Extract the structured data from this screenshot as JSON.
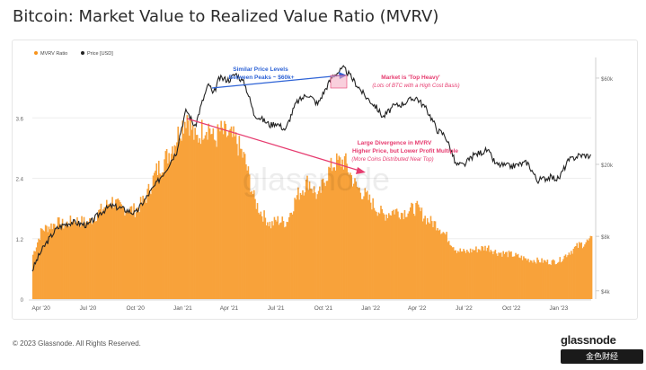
{
  "title": "Bitcoin: Market Value to Realized Value Ratio (MVRV)",
  "footer": "© 2023 Glassnode. All Rights Reserved.",
  "brand": "glassnode",
  "brand_sub": "金色财经",
  "watermark": "glassnode",
  "colors": {
    "mvrv": "#f7931a",
    "mvrv_fill": "#f8a23a",
    "price": "#222222",
    "blue_arrow": "#2e63d6",
    "pink_arrow": "#e63b6f",
    "pink_box": "#f4a7c0"
  },
  "chart_data": {
    "type": "bar",
    "legend": [
      {
        "name": "MVRV Ratio",
        "color": "#f7931a"
      },
      {
        "name": "Price [USD]",
        "color": "#222222"
      }
    ],
    "x_ticks": [
      "Apr '20",
      "Jul '20",
      "Oct '20",
      "Jan '21",
      "Apr '21",
      "Jul '21",
      "Oct '21",
      "Jan '22",
      "Apr '22",
      "Jul '22",
      "Oct '22",
      "Jan '23"
    ],
    "y_left_ticks": [
      "0",
      "1.2",
      "2.4",
      "3.6"
    ],
    "y_left_range": [
      0,
      4.8
    ],
    "y_right_ticks": [
      "$4k",
      "$8k",
      "$20k",
      "$60k"
    ],
    "y_right_tick_values": [
      4000,
      8000,
      20000,
      60000
    ],
    "y_right_log": true,
    "x_range": [
      "2020-03-15",
      "2023-03-05"
    ],
    "series": [
      {
        "name": "MVRV Ratio",
        "x": [
          "2020-03-15",
          "2020-04-01",
          "2020-05-01",
          "2020-05-15",
          "2020-06-01",
          "2020-07-01",
          "2020-07-25",
          "2020-08-15",
          "2020-09-01",
          "2020-10-01",
          "2020-10-20",
          "2020-11-10",
          "2020-12-01",
          "2020-12-20",
          "2021-01-08",
          "2021-01-25",
          "2021-02-10",
          "2021-02-21",
          "2021-03-01",
          "2021-03-13",
          "2021-04-01",
          "2021-04-14",
          "2021-05-01",
          "2021-05-19",
          "2021-06-01",
          "2021-06-20",
          "2021-07-01",
          "2021-07-20",
          "2021-08-10",
          "2021-09-01",
          "2021-09-20",
          "2021-10-05",
          "2021-10-20",
          "2021-11-10",
          "2021-12-01",
          "2021-12-20",
          "2022-01-10",
          "2022-01-25",
          "2022-02-15",
          "2022-03-01",
          "2022-03-30",
          "2022-04-20",
          "2022-05-10",
          "2022-05-25",
          "2022-06-15",
          "2022-07-01",
          "2022-07-20",
          "2022-08-15",
          "2022-09-01",
          "2022-10-01",
          "2022-11-01",
          "2022-11-20",
          "2022-12-15",
          "2023-01-01",
          "2023-01-20",
          "2023-02-10",
          "2023-03-05"
        ],
        "values": [
          0.9,
          1.4,
          1.55,
          1.5,
          1.6,
          1.55,
          1.8,
          2.0,
          1.85,
          1.8,
          2.05,
          2.6,
          2.9,
          3.3,
          3.75,
          3.2,
          3.5,
          3.5,
          3.2,
          3.4,
          3.3,
          3.2,
          2.8,
          2.0,
          1.75,
          1.5,
          1.6,
          1.55,
          2.1,
          2.4,
          2.05,
          2.5,
          2.75,
          2.8,
          2.3,
          2.1,
          1.85,
          1.7,
          1.8,
          1.75,
          1.85,
          1.6,
          1.5,
          1.3,
          1.0,
          0.95,
          1.0,
          1.05,
          0.95,
          0.9,
          0.8,
          0.78,
          0.75,
          0.78,
          0.95,
          1.1,
          1.2
        ]
      },
      {
        "name": "Price [USD]",
        "x": [
          "2020-03-15",
          "2020-04-01",
          "2020-05-01",
          "2020-05-15",
          "2020-06-01",
          "2020-07-01",
          "2020-07-25",
          "2020-08-15",
          "2020-09-01",
          "2020-10-01",
          "2020-10-20",
          "2020-11-10",
          "2020-12-01",
          "2020-12-20",
          "2021-01-08",
          "2021-01-25",
          "2021-02-10",
          "2021-02-21",
          "2021-03-01",
          "2021-03-13",
          "2021-04-01",
          "2021-04-14",
          "2021-05-01",
          "2021-05-19",
          "2021-06-01",
          "2021-06-20",
          "2021-07-01",
          "2021-07-20",
          "2021-08-10",
          "2021-09-01",
          "2021-09-20",
          "2021-10-05",
          "2021-10-20",
          "2021-11-10",
          "2021-12-01",
          "2021-12-20",
          "2022-01-10",
          "2022-01-25",
          "2022-02-15",
          "2022-03-01",
          "2022-03-30",
          "2022-04-20",
          "2022-05-10",
          "2022-05-25",
          "2022-06-15",
          "2022-07-01",
          "2022-07-20",
          "2022-08-15",
          "2022-09-01",
          "2022-10-01",
          "2022-11-01",
          "2022-11-20",
          "2022-12-15",
          "2023-01-01",
          "2023-01-20",
          "2023-02-10",
          "2023-03-05"
        ],
        "values": [
          5200,
          6600,
          8800,
          9300,
          9600,
          9200,
          10800,
          11800,
          11500,
          10700,
          12800,
          15500,
          19000,
          23500,
          40000,
          32000,
          46000,
          56000,
          48000,
          60000,
          58700,
          63500,
          56000,
          38000,
          36000,
          33000,
          34000,
          31000,
          44000,
          49000,
          43000,
          52000,
          62000,
          68000,
          57000,
          48000,
          42000,
          36500,
          42000,
          43000,
          47000,
          40000,
          31000,
          29000,
          20000,
          19800,
          22500,
          24000,
          20000,
          19500,
          20500,
          16300,
          17000,
          16600,
          21000,
          22500,
          22300
        ]
      }
    ],
    "annotations": [
      {
        "text": "Similar Price Levels",
        "color": "#2e63d6"
      },
      {
        "text": "Between Peaks ~ $60k+",
        "color": "#2e63d6"
      },
      {
        "text": "Market is 'Top Heavy'",
        "color": "#e63b6f"
      },
      {
        "text": "(Lots of BTC with a High Cost Basis)",
        "color": "#e63b6f"
      },
      {
        "text": "Large Divergence in MVRV",
        "color": "#e63b6f"
      },
      {
        "text": "Higher Price, but Lower Profit Multiple",
        "color": "#e63b6f"
      },
      {
        "text": "(More Coins Distributed Near Top)",
        "color": "#e63b6f"
      }
    ]
  }
}
